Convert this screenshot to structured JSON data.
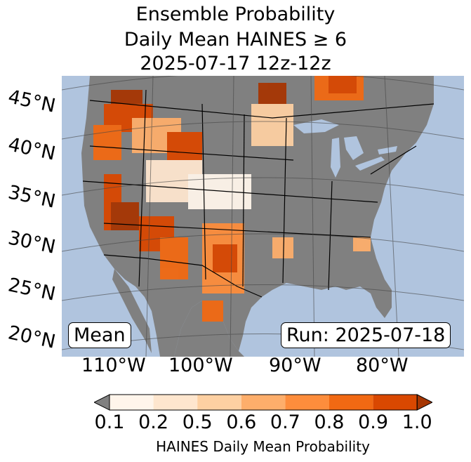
{
  "title": {
    "line1": "Ensemble Probability",
    "line2": "Daily Mean HAINES ≥ 6",
    "line3": "2025-07-17 12z-12z"
  },
  "map": {
    "latitude_labels": [
      "45°N",
      "40°N",
      "35°N",
      "30°N",
      "25°N",
      "20°N"
    ],
    "longitude_labels": [
      "110°W",
      "100°W",
      "90°W",
      "80°W"
    ],
    "mean_box": "Mean",
    "run_box": "Run: 2025-07-18",
    "colors": {
      "ocean": "#b0c4de",
      "land_below_threshold": "#808080",
      "gridlines": "#444444",
      "borders": "#000000"
    }
  },
  "colorbar": {
    "ticks": [
      "0.1",
      "0.2",
      "0.5",
      "0.6",
      "0.7",
      "0.8",
      "0.9",
      "1.0"
    ],
    "label": "HAINES Daily Mean Probability",
    "under_color": "#808080",
    "bins": [
      "#fff5eb",
      "#fee6ce",
      "#fdd0a2",
      "#fdae6b",
      "#fd8d3c",
      "#f16913",
      "#d94801"
    ],
    "over_color": "#a63603"
  }
}
